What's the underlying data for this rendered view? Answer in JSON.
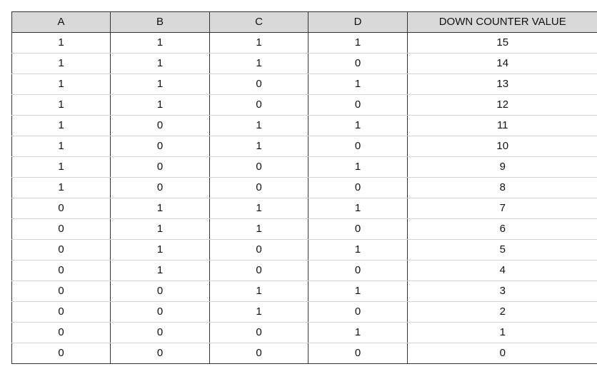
{
  "table": {
    "headers": [
      "A",
      "B",
      "C",
      "D",
      "DOWN COUNTER VALUE"
    ],
    "rows": [
      [
        "1",
        "1",
        "1",
        "1",
        "15"
      ],
      [
        "1",
        "1",
        "1",
        "0",
        "14"
      ],
      [
        "1",
        "1",
        "0",
        "1",
        "13"
      ],
      [
        "1",
        "1",
        "0",
        "0",
        "12"
      ],
      [
        "1",
        "0",
        "1",
        "1",
        "11"
      ],
      [
        "1",
        "0",
        "1",
        "0",
        "10"
      ],
      [
        "1",
        "0",
        "0",
        "1",
        "9"
      ],
      [
        "1",
        "0",
        "0",
        "0",
        "8"
      ],
      [
        "0",
        "1",
        "1",
        "1",
        "7"
      ],
      [
        "0",
        "1",
        "1",
        "0",
        "6"
      ],
      [
        "0",
        "1",
        "0",
        "1",
        "5"
      ],
      [
        "0",
        "1",
        "0",
        "0",
        "4"
      ],
      [
        "0",
        "0",
        "1",
        "1",
        "3"
      ],
      [
        "0",
        "0",
        "1",
        "0",
        "2"
      ],
      [
        "0",
        "0",
        "0",
        "1",
        "1"
      ],
      [
        "0",
        "0",
        "0",
        "0",
        "0"
      ]
    ]
  },
  "colors": {
    "header_background": "#d9d9d9",
    "border_dark": "#333333",
    "row_divider": "#d4d4d4"
  }
}
